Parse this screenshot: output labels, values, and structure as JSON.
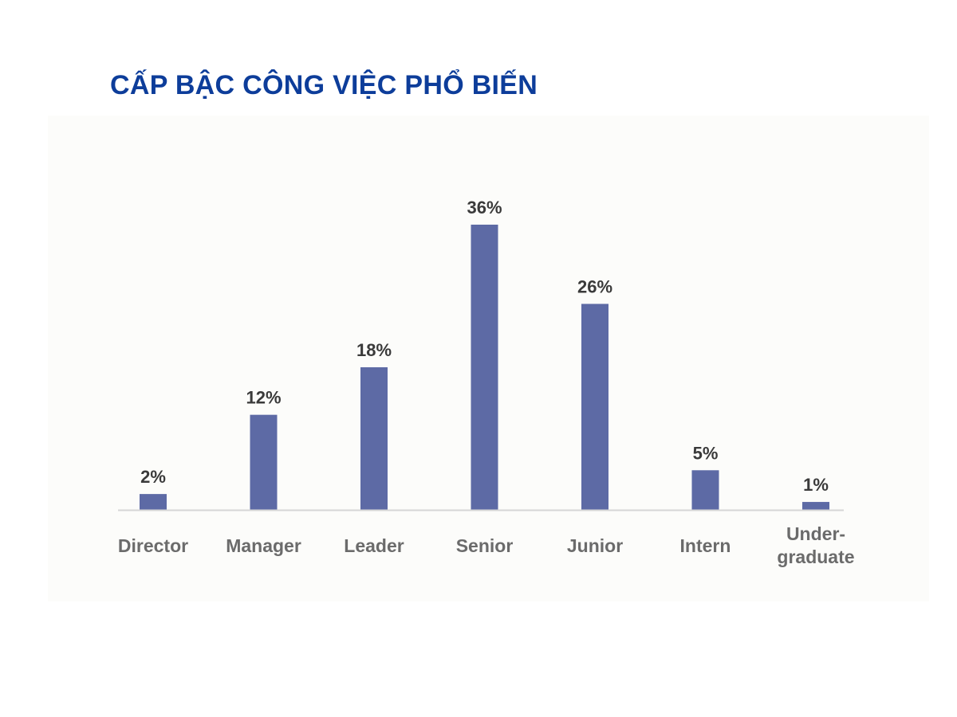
{
  "title": "CẤP BẬC CÔNG VIỆC PHỔ BIẾN",
  "colors": {
    "title": "#0d3d9a",
    "bar": "#5d6aa5",
    "baseline": "#d6d6d6",
    "data_label": "#3a3a3a",
    "category_label": "#6b6b6b"
  },
  "chart_data": {
    "type": "bar",
    "title": "CẤP BẬC CÔNG VIỆC PHỔ BIẾN",
    "xlabel": "",
    "ylabel": "",
    "ylim": [
      0,
      36
    ],
    "grid": false,
    "legend": "none",
    "categories": [
      [
        "Director"
      ],
      [
        "Manager"
      ],
      [
        "Leader"
      ],
      [
        "Senior"
      ],
      [
        "Junior"
      ],
      [
        "Intern"
      ],
      [
        "Under-",
        "graduate"
      ]
    ],
    "values": [
      2,
      12,
      18,
      36,
      26,
      5,
      1
    ],
    "value_labels": [
      "2%",
      "12%",
      "18%",
      "36%",
      "26%",
      "5%",
      "1%"
    ]
  }
}
